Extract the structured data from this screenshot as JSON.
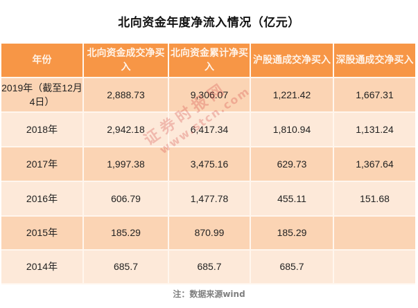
{
  "title": "北向资金年度净流入情况（亿元）",
  "table": {
    "headers": [
      "年份",
      "北向资金成交净买入",
      "北向资金累计净买入",
      "沪股通成交净买入",
      "深股通成交净买入"
    ],
    "rows": [
      {
        "year": "2019年（截至12月4日）",
        "north_trade_net": "2,888.73",
        "north_cumulative_net": "9,306.07",
        "sh_connect_net": "1,221.42",
        "sz_connect_net": "1,667.31"
      },
      {
        "year": "2018年",
        "north_trade_net": "2,942.18",
        "north_cumulative_net": "6,417.34",
        "sh_connect_net": "1,810.94",
        "sz_connect_net": "1,131.24"
      },
      {
        "year": "2017年",
        "north_trade_net": "1,997.38",
        "north_cumulative_net": "3,475.16",
        "sh_connect_net": "629.73",
        "sz_connect_net": "1,367.64"
      },
      {
        "year": "2016年",
        "north_trade_net": "606.79",
        "north_cumulative_net": "1,477.78",
        "sh_connect_net": "455.11",
        "sz_connect_net": "151.68"
      },
      {
        "year": "2015年",
        "north_trade_net": "185.29",
        "north_cumulative_net": "870.99",
        "sh_connect_net": "185.29",
        "sz_connect_net": ""
      },
      {
        "year": "2014年",
        "north_trade_net": "685.7",
        "north_cumulative_net": "685.7",
        "sh_connect_net": "685.7",
        "sz_connect_net": ""
      }
    ]
  },
  "note": "注：数据来源wind",
  "watermark": {
    "text_cn": "证券时报网",
    "text_url": "www.stcn.com"
  },
  "colors": {
    "header_bg": "#f79646",
    "row_odd_bg": "#fbd4b4",
    "row_even_bg": "#fde9d9",
    "header_text": "#fff3e8",
    "watermark": "#d23c3c"
  }
}
